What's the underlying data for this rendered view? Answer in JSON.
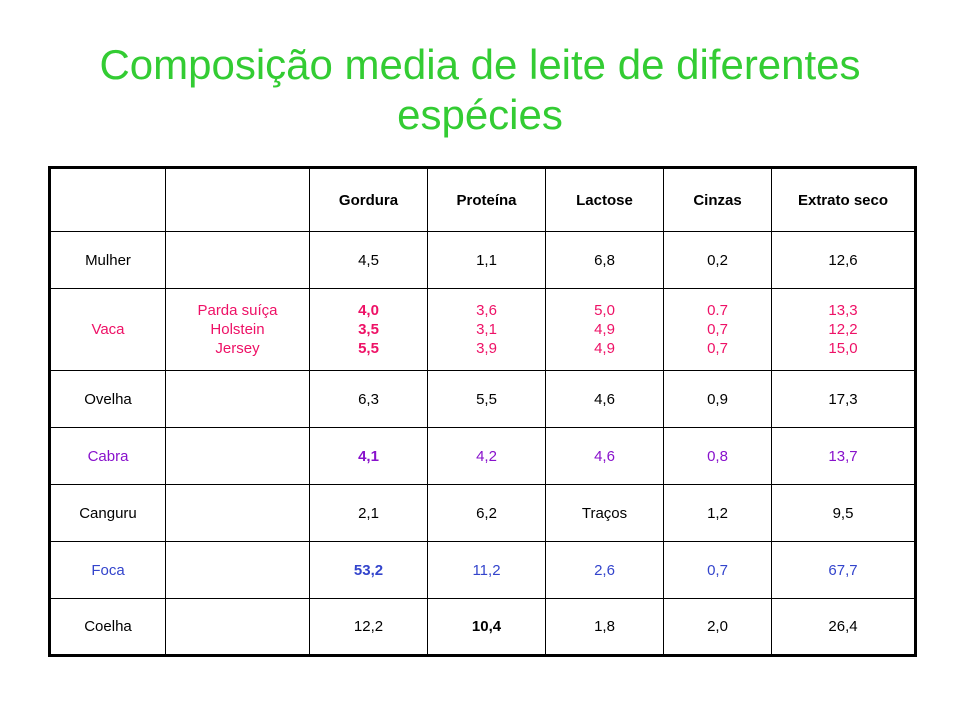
{
  "title": {
    "line1": "Composição media de leite de diferentes",
    "line2": "espécies"
  },
  "table": {
    "headers": [
      "",
      "",
      "Gordura",
      "Proteína",
      "Lactose",
      "Cinzas",
      "Extrato seco"
    ],
    "rows": {
      "mulher": {
        "species": "Mulher",
        "breeds": "",
        "values": [
          "4,5",
          "1,1",
          "6,8",
          "0,2",
          "12,6"
        ]
      },
      "vaca": {
        "species": "Vaca",
        "breeds": [
          "Parda suíça",
          "Holstein",
          "Jersey"
        ],
        "values": [
          [
            "4,0",
            "3,5",
            "5,5"
          ],
          [
            "3,6",
            "3,1",
            "3,9"
          ],
          [
            "5,0",
            "4,9",
            "4,9"
          ],
          [
            "0.7",
            "0,7",
            "0,7"
          ],
          [
            "13,3",
            "12,2",
            "15,0"
          ]
        ]
      },
      "ovelha": {
        "species": "Ovelha",
        "breeds": "",
        "values": [
          "6,3",
          "5,5",
          "4,6",
          "0,9",
          "17,3"
        ]
      },
      "cabra": {
        "species": "Cabra",
        "breeds": "",
        "values": [
          "4,1",
          "4,2",
          "4,6",
          "0,8",
          "13,7"
        ]
      },
      "canguru": {
        "species": "Canguru",
        "breeds": "",
        "values": [
          "2,1",
          "6,2",
          "Traços",
          "1,2",
          "9,5"
        ]
      },
      "foca": {
        "species": "Foca",
        "breeds": "",
        "values": [
          "53,2",
          "11,2",
          "2,6",
          "0,7",
          "67,7"
        ]
      },
      "coelha": {
        "species": "Coelha",
        "breeds": "",
        "values": [
          "12,2",
          "10,4",
          "1,8",
          "2,0",
          "26,4"
        ]
      }
    }
  },
  "colors": {
    "title": "#33cc33",
    "vaca": "#ee1166",
    "cabra_species": "#8811cc",
    "highlight": "#3344cc",
    "text": "#000000"
  }
}
